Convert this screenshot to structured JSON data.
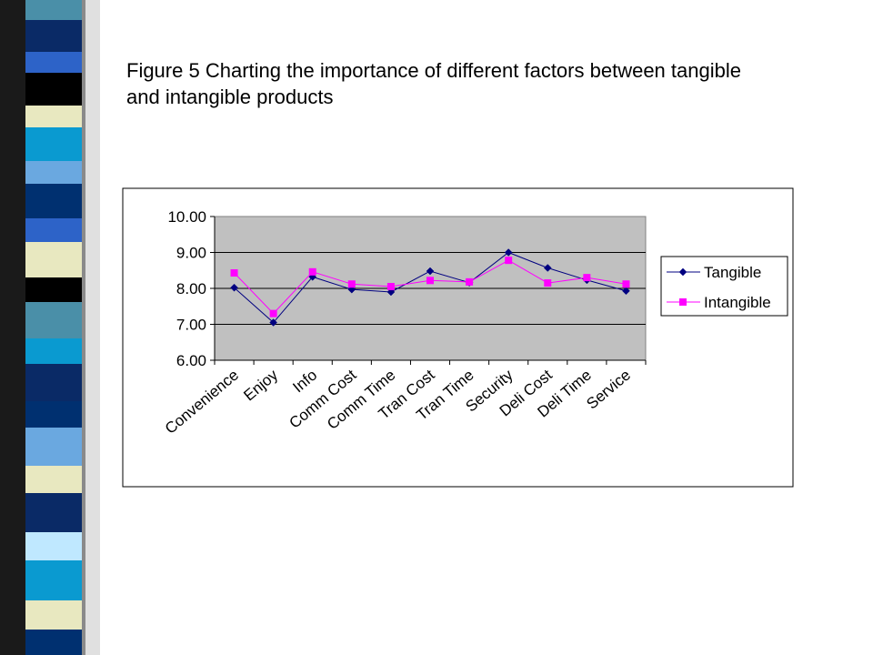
{
  "caption": "Figure 5 Charting the importance of different factors between tangible and intangible products",
  "colors": {
    "plot_background": "#c0c0c0",
    "tangible": "#000080",
    "intangible": "#ff00ff",
    "strip_blocks": [
      "#4a8fa8",
      "#0a2a66",
      "#2d63c8",
      "#000000",
      "#e8e8c0",
      "#0a9ad0",
      "#6aa8e0",
      "#003070",
      "#bfe8ff"
    ]
  },
  "chart_data": {
    "type": "line",
    "title": "",
    "xlabel": "",
    "ylabel": "",
    "ylim": [
      6.0,
      10.0
    ],
    "yticks": [
      "6.00",
      "7.00",
      "8.00",
      "9.00",
      "10.00"
    ],
    "grid": true,
    "legend_position": "right",
    "categories": [
      "Convenience",
      "Enjoy",
      "Info",
      "Comm Cost",
      "Comm Time",
      "Tran Cost",
      "Tran Time",
      "Security",
      "Deli Cost",
      "Deli Time",
      "Service"
    ],
    "series": [
      {
        "name": "Tangible",
        "marker": "diamond",
        "values": [
          8.02,
          7.05,
          8.32,
          7.97,
          7.9,
          8.48,
          8.16,
          9.0,
          8.57,
          8.23,
          7.93
        ]
      },
      {
        "name": "Intangible",
        "marker": "square",
        "values": [
          8.43,
          7.3,
          8.46,
          8.12,
          8.05,
          8.22,
          8.18,
          8.78,
          8.15,
          8.3,
          8.12
        ]
      }
    ]
  }
}
